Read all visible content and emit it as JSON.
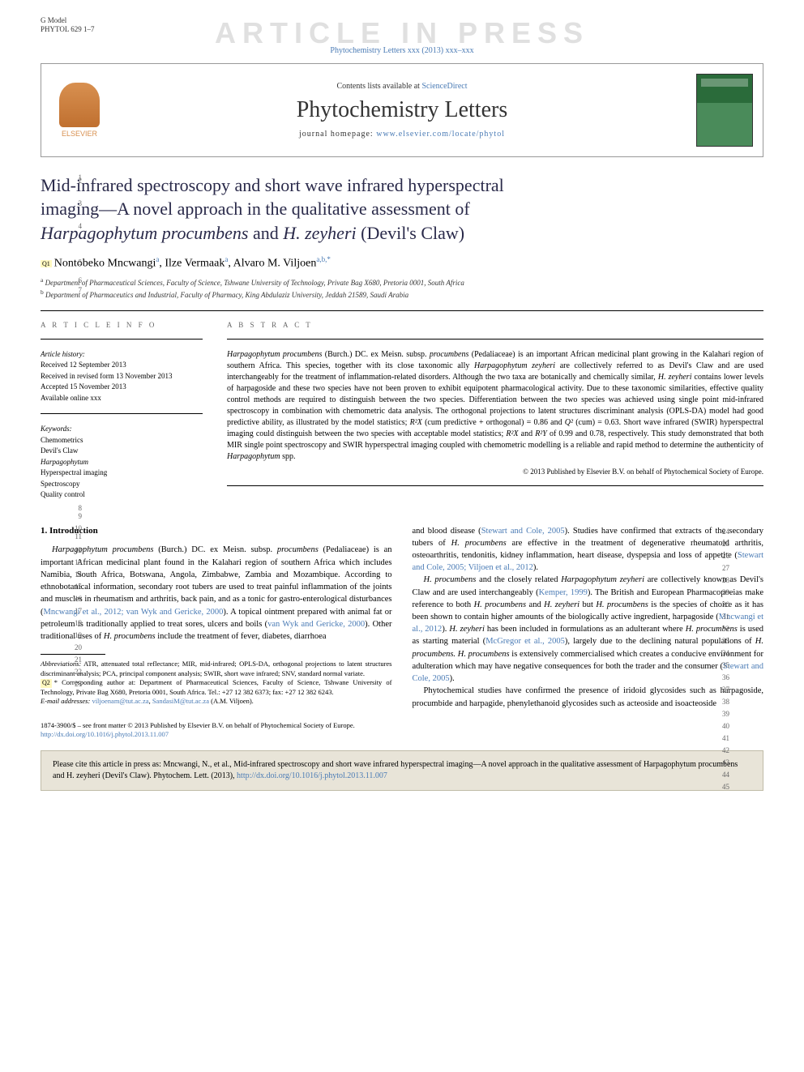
{
  "header": {
    "g_model": "G Model",
    "model_id": "PHYTOL 629 1–7",
    "watermark": "ARTICLE IN PRESS",
    "journal_ref": "Phytochemistry Letters xxx (2013) xxx–xxx",
    "contents_prefix": "Contents lists available at ",
    "contents_link": "ScienceDirect",
    "journal_name": "Phytochemistry Letters",
    "homepage_prefix": "journal homepage: ",
    "homepage_link": "www.elsevier.com/locate/phytol",
    "elsevier": "ELSEVIER"
  },
  "title": {
    "line1": "Mid-infrared spectroscopy and short wave infrared hyperspectral",
    "line2": "imaging—A novel approach in the qualitative assessment of",
    "line3_pre": "",
    "line3_i1": "Harpagophytum procumbens",
    "line3_mid": " and ",
    "line3_i2": "H. zeyheri",
    "line3_post": " (Devil's Claw)"
  },
  "authors": {
    "q1": "Q1",
    "a1": "Nontobeko Mncwangi",
    "a1_sup": "a",
    "a2": "Ilze Vermaak",
    "a2_sup": "a",
    "a3": "Alvaro M. Viljoen",
    "a3_sup": "a,b,",
    "star": "*"
  },
  "affiliations": {
    "a": "Department of Pharmaceutical Sciences, Faculty of Science, Tshwane University of Technology, Private Bag X680, Pretoria 0001, South Africa",
    "b": "Department of Pharmaceutics and Industrial, Faculty of Pharmacy, King Abdulaziz University, Jeddah 21589, Saudi Arabia"
  },
  "info": {
    "heading": "A R T I C L E   I N F O",
    "history_label": "Article history:",
    "received": "Received 12 September 2013",
    "revised": "Received in revised form 13 November 2013",
    "accepted": "Accepted 15 November 2013",
    "online": "Available online xxx",
    "keywords_label": "Keywords:",
    "kw1": "Chemometrics",
    "kw2": "Devil's Claw",
    "kw3": "Harpagophytum",
    "kw4": "Hyperspectral imaging",
    "kw5": "Spectroscopy",
    "kw6": "Quality control"
  },
  "abstract": {
    "heading": "A B S T R A C T",
    "text_parts": [
      {
        "i": true,
        "t": "Harpagophytum procumbens"
      },
      {
        "i": false,
        "t": " (Burch.) DC. ex Meisn. subsp. "
      },
      {
        "i": true,
        "t": "procumbens"
      },
      {
        "i": false,
        "t": " (Pedaliaceae) is an important African medicinal plant growing in the Kalahari region of southern Africa. This species, together with its close taxonomic ally "
      },
      {
        "i": true,
        "t": "Harpagophytum zeyheri"
      },
      {
        "i": false,
        "t": " are collectively referred to as Devil's Claw and are used interchangeably for the treatment of inflammation-related disorders. Although the two taxa are botanically and chemically similar, "
      },
      {
        "i": true,
        "t": "H. zeyheri"
      },
      {
        "i": false,
        "t": " contains lower levels of harpagoside and these two species have not been proven to exhibit equipotent pharmacological activity. Due to these taxonomic similarities, effective quality control methods are required to distinguish between the two species. Differentiation between the two species was achieved using single point mid-infrared spectroscopy in combination with chemometric data analysis. The orthogonal projections to latent structures discriminant analysis (OPLS-DA) model had good predictive ability, as illustrated by the model statistics; "
      },
      {
        "i": true,
        "t": "R²X"
      },
      {
        "i": false,
        "t": " (cum predictive + orthogonal) = 0.86 and "
      },
      {
        "i": true,
        "t": "Q²"
      },
      {
        "i": false,
        "t": " (cum) = 0.63. Short wave infrared (SWIR) hyperspectral imaging could distinguish between the two species with acceptable model statistics; "
      },
      {
        "i": true,
        "t": "R²X"
      },
      {
        "i": false,
        "t": " and "
      },
      {
        "i": true,
        "t": "R²Y"
      },
      {
        "i": false,
        "t": " of 0.99 and 0.78, respectively. This study demonstrated that both MIR single point spectroscopy and SWIR hyperspectral imaging coupled with chemometric modelling is a reliable and rapid method to determine the authenticity of "
      },
      {
        "i": true,
        "t": "Harpagophytum"
      },
      {
        "i": false,
        "t": " spp."
      }
    ],
    "copyright": "© 2013 Published by Elsevier B.V. on behalf of Phytochemical Society of Europe."
  },
  "body": {
    "section1": "1. Introduction",
    "col1_p1_parts": [
      {
        "i": true,
        "t": "Harpagophytum procumbens"
      },
      {
        "i": false,
        "t": " (Burch.) DC. ex Meisn. subsp. "
      },
      {
        "i": true,
        "t": "procumbens"
      },
      {
        "i": false,
        "t": " (Pedaliaceae) is an important African medicinal plant found in the Kalahari region of southern Africa which includes Namibia, South Africa, Botswana, Angola, Zimbabwe, Zambia and Mozambique. According to ethnobotanical information, secondary root tubers are used to treat painful inflammation of the joints and muscles in rheumatism and arthritis, back pain, and as a tonic for gastro-enterological disturbances ("
      },
      {
        "link": true,
        "t": "Mncwangi et al., 2012; van Wyk and Gericke, 2000"
      },
      {
        "i": false,
        "t": "). A topical ointment prepared with animal fat or petroleum is traditionally applied to treat sores, ulcers and boils ("
      },
      {
        "link": true,
        "t": "van Wyk and Gericke, 2000"
      },
      {
        "i": false,
        "t": "). Other traditional uses of "
      },
      {
        "i": true,
        "t": "H. procumbens"
      },
      {
        "i": false,
        "t": " include the treatment of fever, diabetes, diarrhoea"
      }
    ],
    "col2_p1_parts": [
      {
        "i": false,
        "t": "and blood disease ("
      },
      {
        "link": true,
        "t": "Stewart and Cole, 2005"
      },
      {
        "i": false,
        "t": "). Studies have confirmed that extracts of the secondary tubers of "
      },
      {
        "i": true,
        "t": "H. procumbens"
      },
      {
        "i": false,
        "t": " are effective in the treatment of degenerative rheumatoid arthritis, osteoarthritis, tendonitis, kidney inflammation, heart disease, dyspepsia and loss of appetite ("
      },
      {
        "link": true,
        "t": "Stewart and Cole, 2005; Viljoen et al., 2012"
      },
      {
        "i": false,
        "t": ")."
      }
    ],
    "col2_p2_parts": [
      {
        "i": true,
        "t": "H. procumbens"
      },
      {
        "i": false,
        "t": " and the closely related "
      },
      {
        "i": true,
        "t": "Harpagophytum zeyheri"
      },
      {
        "i": false,
        "t": " are collectively known as Devil's Claw and are used interchangeably ("
      },
      {
        "link": true,
        "t": "Kemper, 1999"
      },
      {
        "i": false,
        "t": "). The British and European Pharmacopoeias make reference to both "
      },
      {
        "i": true,
        "t": "H. procumbens"
      },
      {
        "i": false,
        "t": " and "
      },
      {
        "i": true,
        "t": "H. zeyheri"
      },
      {
        "i": false,
        "t": " but "
      },
      {
        "i": true,
        "t": "H. procumbens"
      },
      {
        "i": false,
        "t": " is the species of choice as it has been shown to contain higher amounts of the biologically active ingredient, harpagoside ("
      },
      {
        "link": true,
        "t": "Mncwangi et al., 2012"
      },
      {
        "i": false,
        "t": "). "
      },
      {
        "i": true,
        "t": "H. zeyheri"
      },
      {
        "i": false,
        "t": " has been included in formulations as an adulterant where "
      },
      {
        "i": true,
        "t": "H. procumbens"
      },
      {
        "i": false,
        "t": " is used as starting material ("
      },
      {
        "link": true,
        "t": "McGregor et al., 2005"
      },
      {
        "i": false,
        "t": "), largely due to the declining natural populations of "
      },
      {
        "i": true,
        "t": "H. procumbens. H. procumbens"
      },
      {
        "i": false,
        "t": " is extensively commercialised which creates a conducive environment for adulteration which may have negative consequences for both the trader and the consumer ("
      },
      {
        "link": true,
        "t": "Stewart and Cole, 2005"
      },
      {
        "i": false,
        "t": ")."
      }
    ],
    "col2_p3_parts": [
      {
        "i": false,
        "t": "Phytochemical studies have confirmed the presence of iridoid glycosides such as harpagoside, procumbide and harpagide, phenylethanoid glycosides such as acteoside and isoacteoside"
      }
    ]
  },
  "footnotes": {
    "abbrev_label": "Abbreviations:",
    "abbrev": " ATR, attenuated total reflectance; MIR, mid-infrared; OPLS-DA, orthogonal projections to latent structures discriminant analysis; PCA, principal component analysis; SWIR, short wave infrared; SNV, standard normal variate.",
    "q2": "Q2",
    "corr": "* Corresponding author at: Department of Pharmaceutical Sciences, Faculty of Science, Tshwane University of Technology, Private Bag X680, Pretoria 0001, South Africa. Tel.: +27 12 382 6373; fax: +27 12 382 6243.",
    "email_label": "E-mail addresses:",
    "email1": "viljoenam@tut.ac.za",
    "email_sep": ", ",
    "email2": "SandasiM@tut.ac.za",
    "email_post": " (A.M. Viljoen)."
  },
  "bottom": {
    "issn": "1874-3900/$ – see front matter © 2013 Published by Elsevier B.V. on behalf of Phytochemical Society of Europe.",
    "doi": "http://dx.doi.org/10.1016/j.phytol.2013.11.007"
  },
  "citebox": {
    "text_pre": "Please cite this article in press as: Mncwangi, N., et al., Mid-infrared spectroscopy and short wave infrared hyperspectral imaging—A novel approach in the qualitative assessment of ",
    "text_i1": "Harpagophytum procumbens",
    "text_mid": " and ",
    "text_i2": "H. zeyheri",
    "text_post": " (Devil's Claw). Phytochem. Lett. (2013), ",
    "doi": "http://dx.doi.org/10.1016/j.phytol.2013.11.007"
  },
  "line_numbers": {
    "left": [
      "1",
      "2",
      "3",
      "4",
      "5",
      "6",
      "7",
      "8",
      "9",
      "10",
      "11",
      "12",
      "13",
      "14",
      "15",
      "16",
      "17",
      "18",
      "19",
      "20",
      "21",
      "22",
      "23"
    ],
    "right": [
      "24",
      "25",
      "26",
      "27",
      "28",
      "29",
      "30",
      "31",
      "32",
      "33",
      "34",
      "35",
      "36",
      "37",
      "38",
      "39",
      "40",
      "41",
      "42",
      "43",
      "44",
      "45"
    ]
  },
  "colors": {
    "link": "#4a7bb5",
    "watermark": "#e0e0e0",
    "citebox_bg": "#e8e4d8",
    "highlight": "#fff8c0"
  }
}
